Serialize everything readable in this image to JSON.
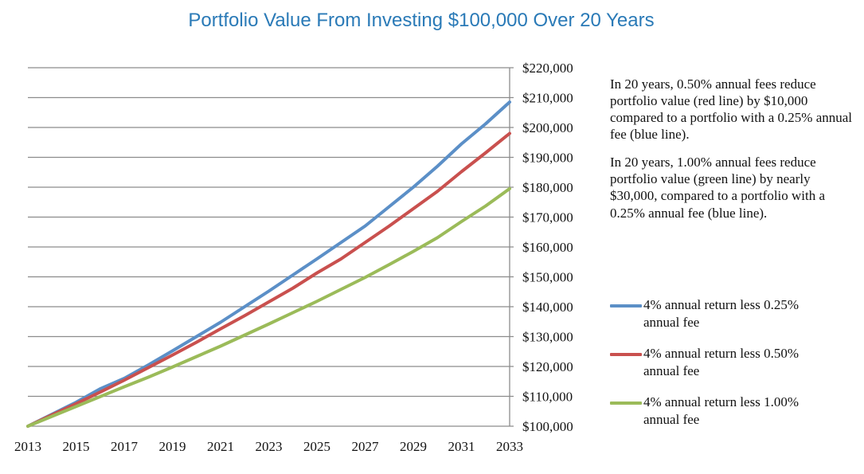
{
  "chart_data": {
    "type": "line",
    "title": "Portfolio Value From Investing $100,000 Over 20 Years",
    "x": [
      2013,
      2014,
      2015,
      2016,
      2017,
      2018,
      2019,
      2020,
      2021,
      2022,
      2023,
      2024,
      2025,
      2026,
      2027,
      2028,
      2029,
      2030,
      2031,
      2032,
      2033
    ],
    "x_ticks": [
      "2013",
      "2015",
      "2017",
      "2019",
      "2021",
      "2023",
      "2025",
      "2027",
      "2029",
      "2031",
      "2033"
    ],
    "y_ticks": [
      "$100,000",
      "$110,000",
      "$120,000",
      "$130,000",
      "$140,000",
      "$150,000",
      "$160,000",
      "$170,000",
      "$180,000",
      "$190,000",
      "$200,000",
      "$210,000",
      "$220,000"
    ],
    "xlim": [
      2013,
      2033
    ],
    "ylim": [
      100000,
      220000
    ],
    "y_axis_position": "right",
    "grid": "horizontal",
    "series": [
      {
        "name": "4% annual return less 0.25% annual fee",
        "color": "#5b8fc7",
        "values": [
          100000,
          104000,
          108000,
          112500,
          116000,
          120500,
          125200,
          130000,
          134800,
          140000,
          145200,
          150600,
          156000,
          161500,
          167000,
          173500,
          180000,
          187000,
          194500,
          201200,
          208500
        ]
      },
      {
        "name": "4% annual return less 0.50% annual fee",
        "color": "#c9504e",
        "values": [
          100000,
          103800,
          107500,
          111400,
          115400,
          119600,
          123800,
          128100,
          132600,
          137000,
          141600,
          146200,
          151300,
          156000,
          161500,
          167000,
          172800,
          178600,
          185200,
          191500,
          198000
        ]
      },
      {
        "name": "4% annual return less 1.00% annual fee",
        "color": "#9bbb59",
        "values": [
          100000,
          103300,
          106600,
          109900,
          113200,
          116400,
          119800,
          123300,
          126800,
          130500,
          134200,
          138000,
          141800,
          145800,
          149800,
          154100,
          158500,
          163100,
          168500,
          173700,
          179500
        ]
      }
    ]
  },
  "annotations": [
    "In 20 years, 0.50% annual fees reduce portfolio value (red line) by $10,000 compared to a portfolio with a 0.25% annual fee (blue line).",
    "In 20 years, 1.00% annual fees reduce portfolio value (green line) by nearly $30,000, compared to a portfolio with a 0.25% annual fee (blue line)."
  ],
  "legend": [
    {
      "label": "4% annual return less 0.25% annual fee",
      "color": "#5b8fc7"
    },
    {
      "label": "4% annual return less 0.50% annual fee",
      "color": "#c9504e"
    },
    {
      "label": "4% annual return less 1.00% annual fee",
      "color": "#9bbb59"
    }
  ],
  "colors": {
    "title": "#2a7ab7",
    "grid": "#8c8c8c"
  }
}
